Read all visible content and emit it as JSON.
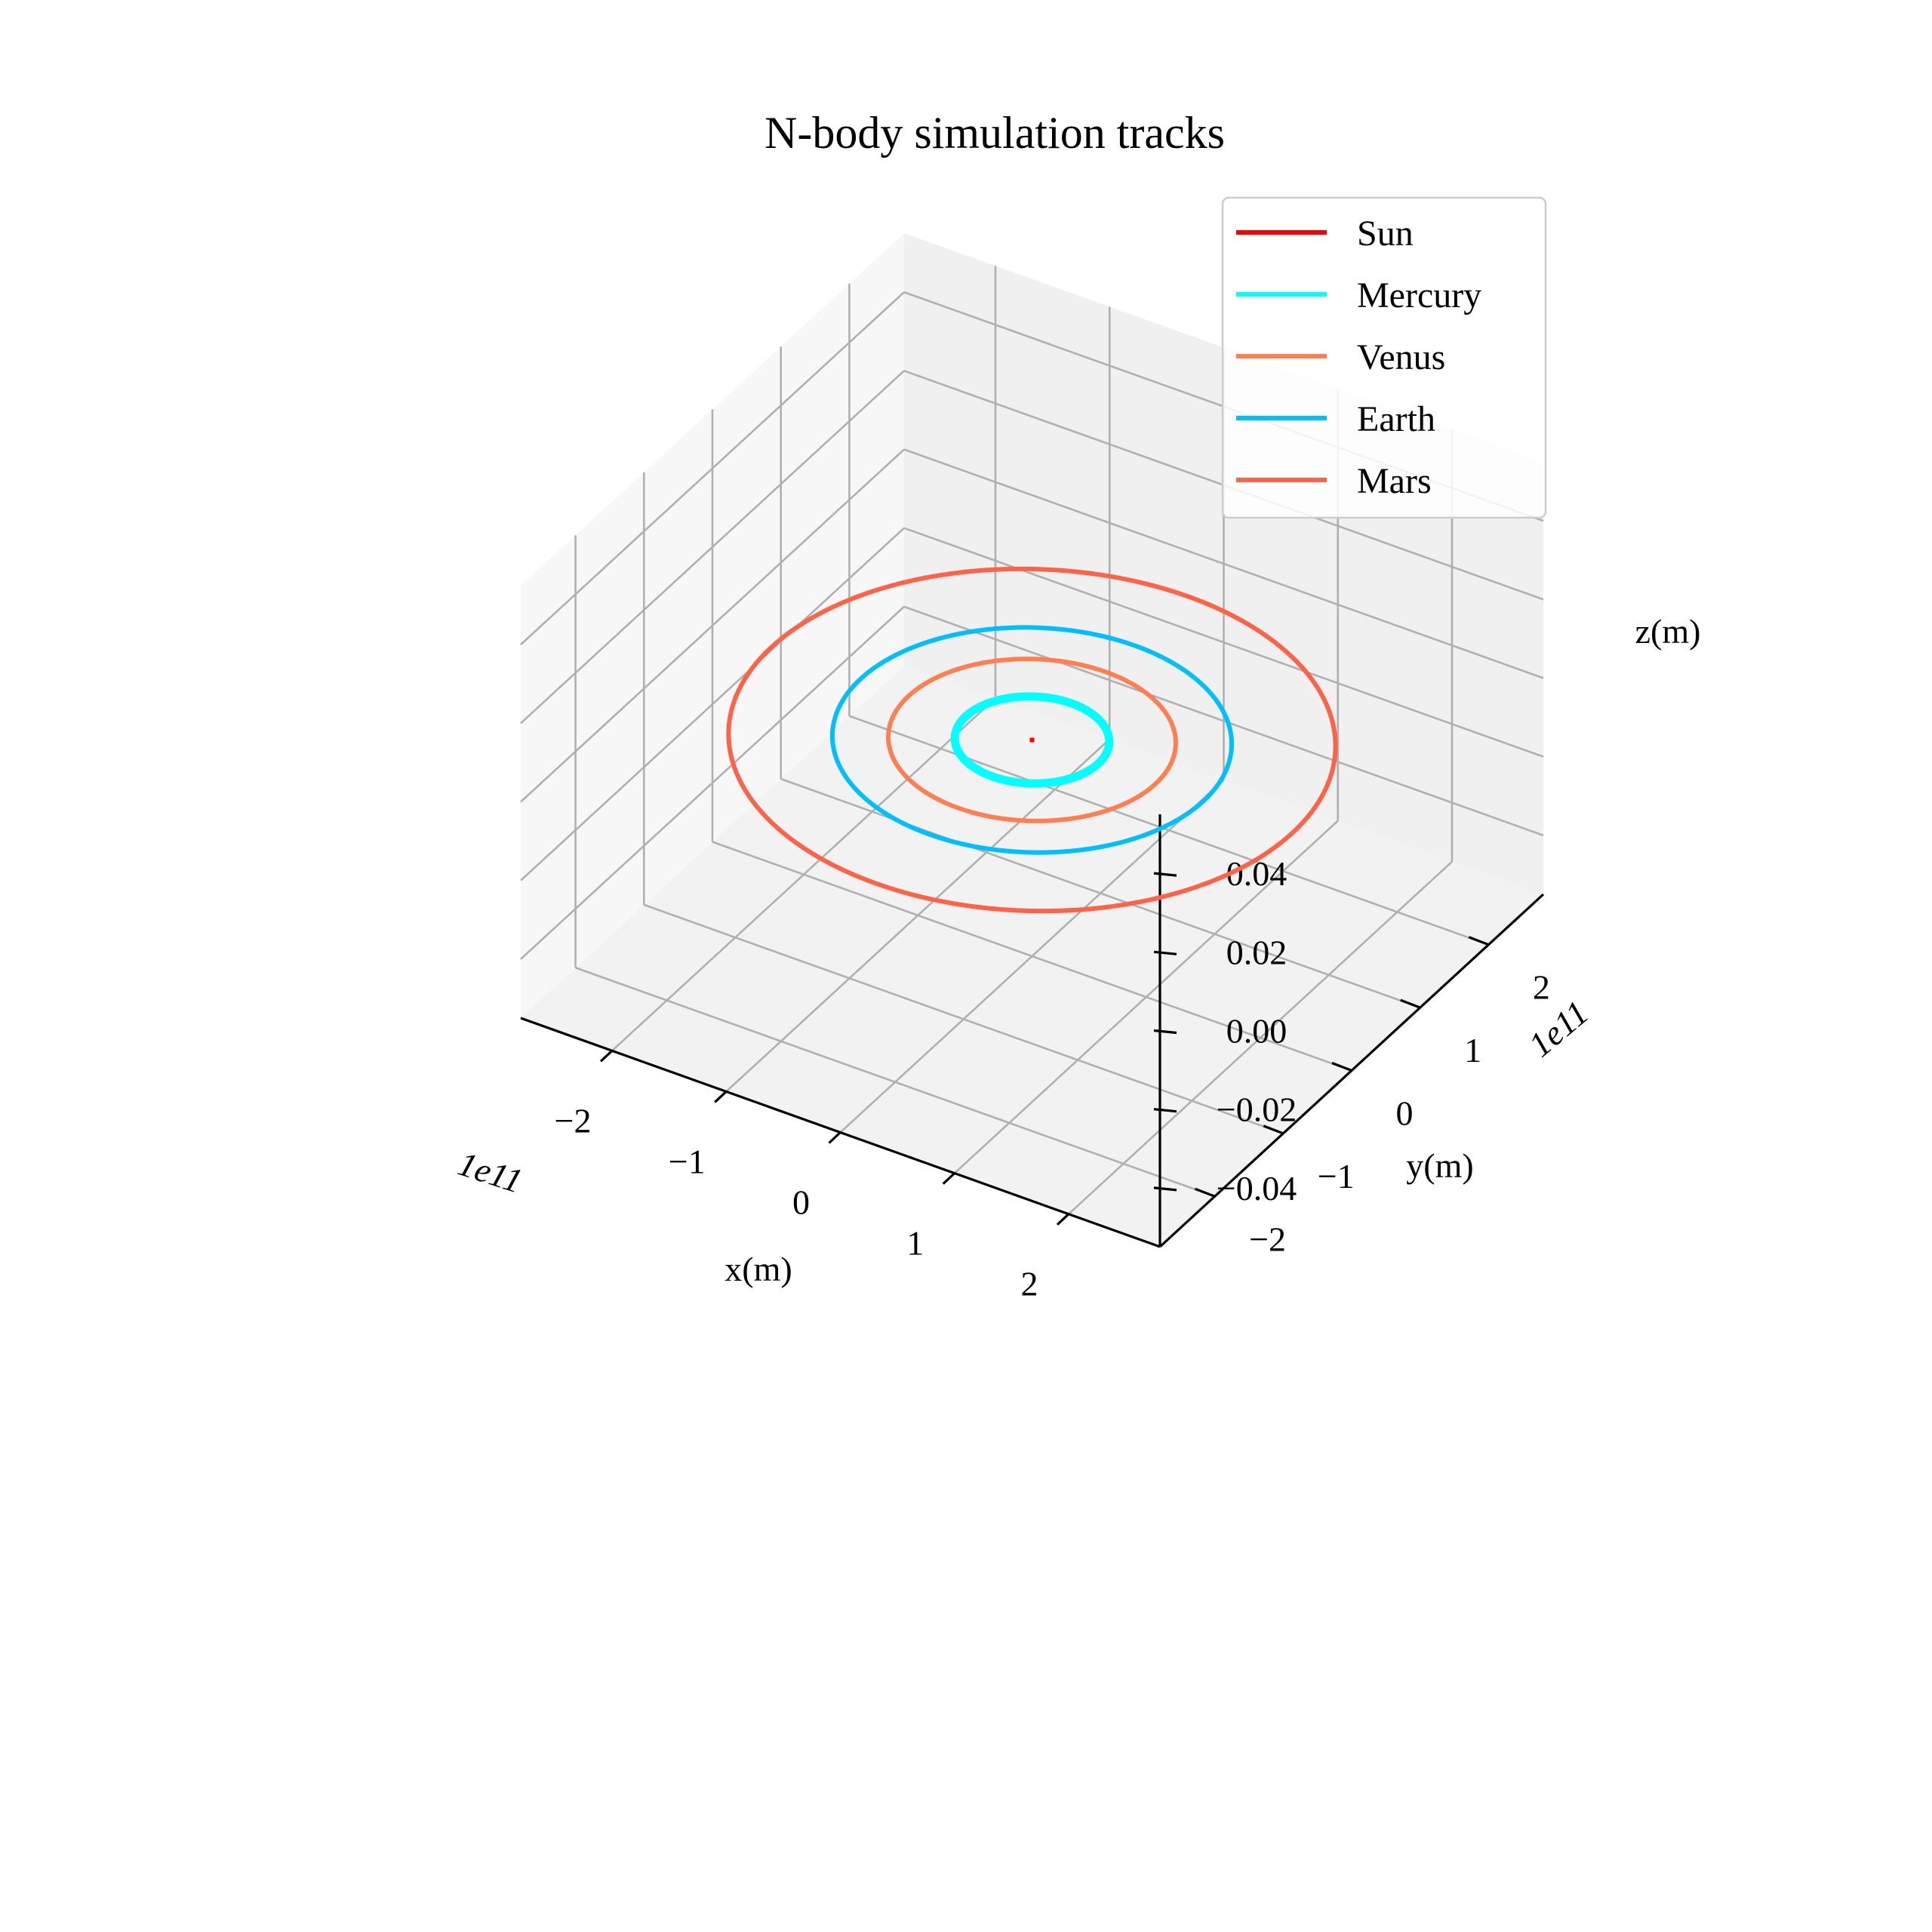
{
  "chart_data": {
    "type": "line",
    "title": "N-body simulation tracks",
    "xlabel": "x(m)",
    "ylabel": "y(m)",
    "zlabel": "z(m)",
    "x_offset_label": "1e11",
    "y_offset_label": "1e11",
    "xlim": [
      -2.8,
      2.8
    ],
    "ylim": [
      -2.8,
      2.8
    ],
    "zlim": [
      -0.055,
      0.055
    ],
    "x_ticks": [
      -2,
      -1,
      0,
      1,
      2
    ],
    "x_tick_labels": [
      "−2",
      "−1",
      "0",
      "1",
      "2"
    ],
    "y_ticks": [
      -2,
      -1,
      0,
      1,
      2
    ],
    "y_tick_labels": [
      "−2",
      "−1",
      "0",
      "1",
      "2"
    ],
    "z_ticks": [
      -0.04,
      -0.02,
      0.0,
      0.02,
      0.04
    ],
    "z_tick_labels": [
      "−0.04",
      "−0.02",
      "0.00",
      "0.02",
      "0.04"
    ],
    "grid": true,
    "legend_position": "top-right",
    "series": [
      {
        "name": "Sun",
        "color": "#ff0000",
        "orbit_radius": 0.0,
        "z": 0.0
      },
      {
        "name": "Mercury",
        "color": "#00ffff",
        "orbit_radius": 0.58,
        "z": 0.0
      },
      {
        "name": "Venus",
        "color": "#ff7f50",
        "orbit_radius": 1.08,
        "z": 0.0
      },
      {
        "name": "Earth",
        "color": "#00bfff",
        "orbit_radius": 1.5,
        "z": 0.0
      },
      {
        "name": "Mars",
        "color": "#ff6347",
        "orbit_radius": 2.28,
        "z": 0.0
      }
    ]
  }
}
